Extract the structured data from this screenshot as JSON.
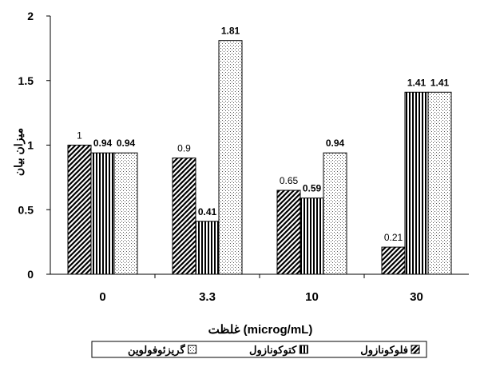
{
  "chart_data": {
    "type": "bar",
    "title": "",
    "categories": [
      "0",
      "3.3",
      "10",
      "30"
    ],
    "xlabel": "غلظت (microg/mL)",
    "ylabel": "میزان بیان",
    "ylim": [
      0,
      2
    ],
    "yticks": [
      "0",
      "0.5",
      "1",
      "1.5",
      "2"
    ],
    "grid": false,
    "legend_position": "bottom",
    "series": [
      {
        "name": "فلوکونازول",
        "pattern": "diagonal-hatch",
        "values": [
          1,
          0.9,
          0.65,
          0.21
        ],
        "labels": [
          "1",
          "0.9",
          "0.65",
          "0.21"
        ]
      },
      {
        "name": "کتوکونازول",
        "pattern": "vertical-lines",
        "values": [
          0.94,
          0.41,
          0.59,
          1.41
        ],
        "labels": [
          "0.94",
          "0.41",
          "0.59",
          "1.41"
        ]
      },
      {
        "name": "گریزئوفولوین",
        "pattern": "dotted",
        "values": [
          0.94,
          1.81,
          0.94,
          1.41
        ],
        "labels": [
          "0.94",
          "1.81",
          "0.94",
          "1.41"
        ]
      }
    ]
  }
}
